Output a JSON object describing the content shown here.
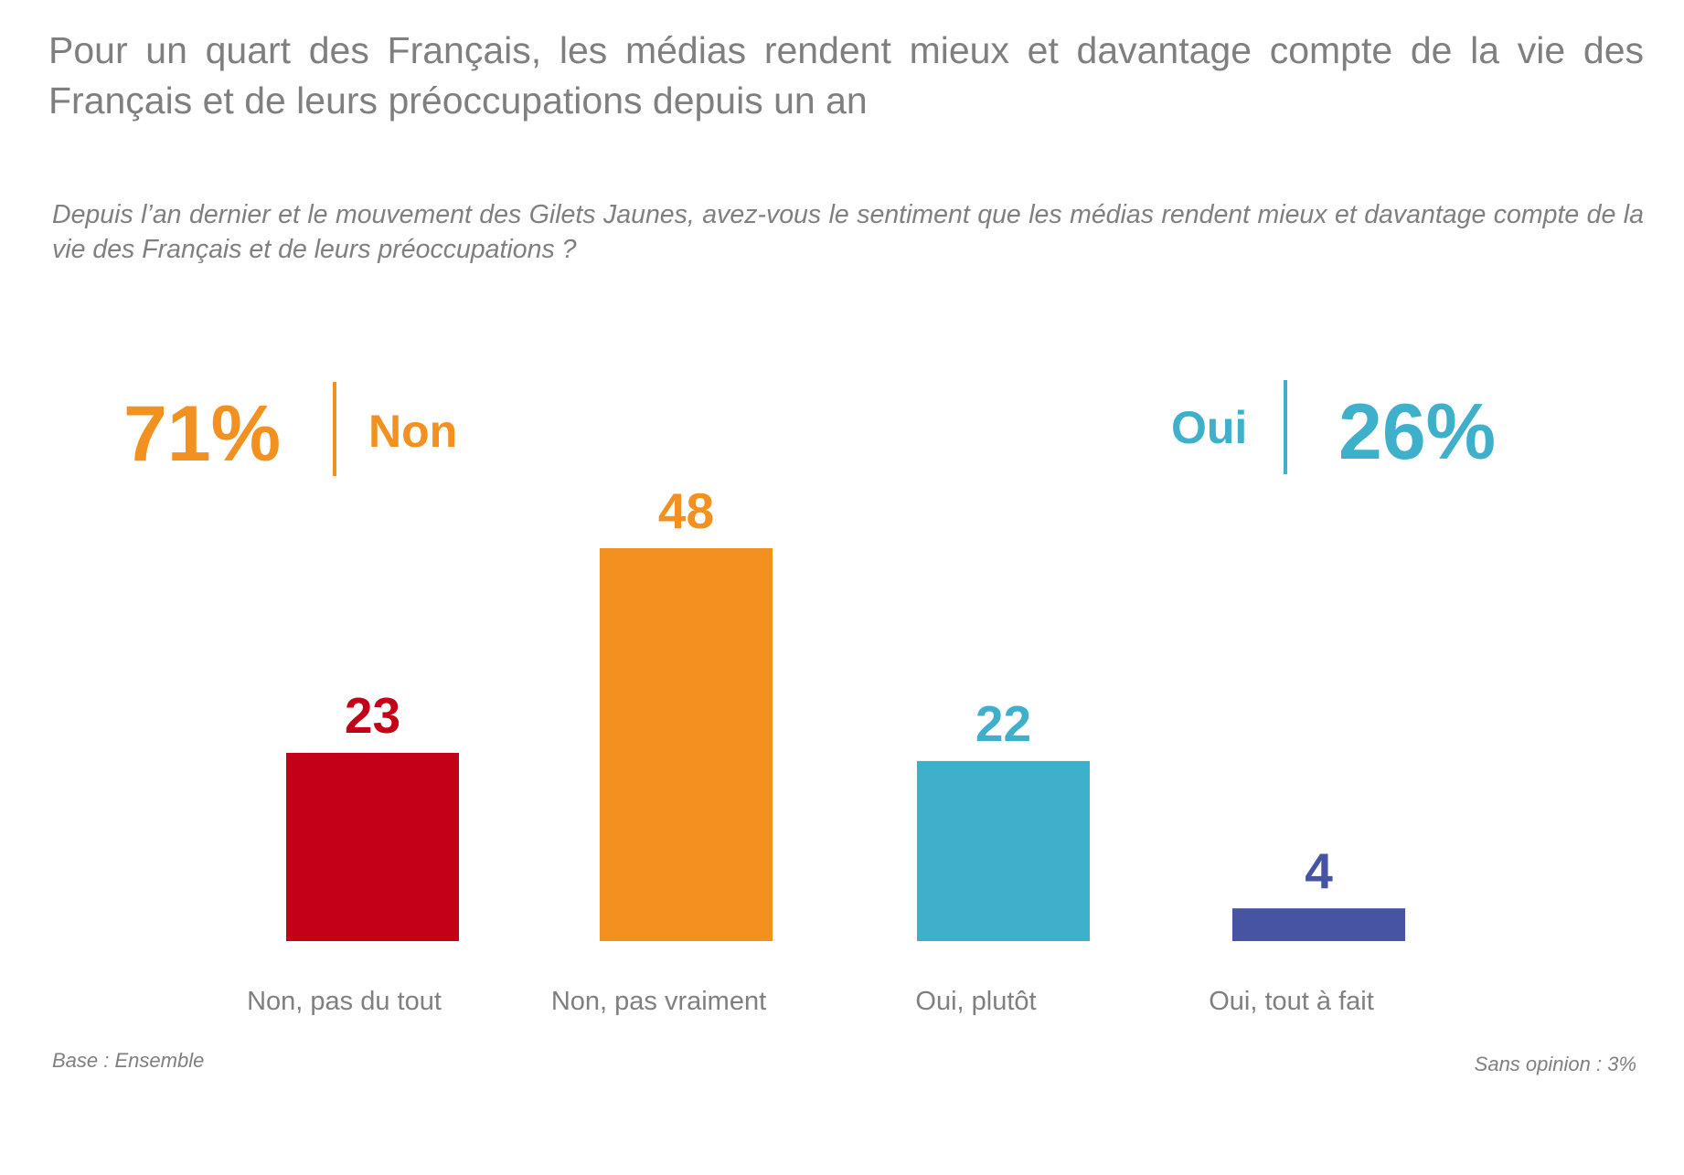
{
  "title": "Pour un quart des Français, les médias rendent mieux et davantage compte de la vie des Français et de leurs préoccupations depuis un an",
  "question": "Depuis l’an dernier et le mouvement des Gilets Jaunes, avez-vous le sentiment que les médias rendent mieux et davantage compte de la vie des Français et de leurs préoccupations ?",
  "summary": {
    "non": {
      "value": "71%",
      "label": "Non",
      "color": "#f39120"
    },
    "oui": {
      "value": "26%",
      "label": "Oui",
      "color": "#3fb0cc"
    }
  },
  "chart_data": {
    "type": "bar",
    "title": "",
    "xlabel": "",
    "ylabel": "",
    "ylim": [
      0,
      48
    ],
    "grid": false,
    "categories": [
      "Non, pas du tout",
      "Non, pas vraiment",
      "Oui, plutôt",
      "Oui, tout à fait"
    ],
    "values": [
      23,
      48,
      22,
      4
    ],
    "data_labels": [
      "23",
      "48",
      "22",
      "4"
    ],
    "colors": [
      "#c40019",
      "#f39120",
      "#3fb0cc",
      "#4753a3"
    ]
  },
  "footer": {
    "base": "Base : Ensemble",
    "sans_opinion": "Sans opinion : 3%"
  }
}
